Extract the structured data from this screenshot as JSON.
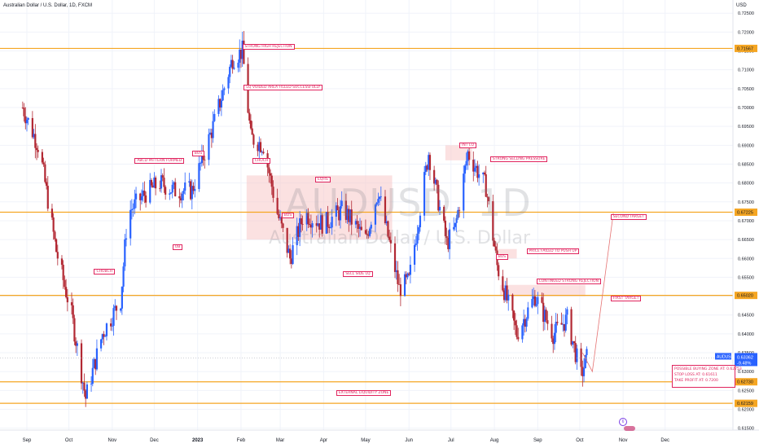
{
  "header": {
    "title": "Australian Dollar / U.S. Dollar, 1D, FXCM",
    "currency": "USD"
  },
  "watermark": {
    "symbol": "AUDUSD, 1D",
    "name": "Australian Dollar / U.S. Dollar"
  },
  "colors": {
    "up": "#2962ff",
    "down": "#b22833",
    "level": "#f5a623",
    "annotation": "#e0245e",
    "zone": "#f8c9c9",
    "price_badge": "#2962ff"
  },
  "chart_data": {
    "type": "candlestick",
    "title": "Australian Dollar / U.S. Dollar, 1D, FXCM",
    "x_tick_labels": [
      "Sep",
      "Oct",
      "Nov",
      "Dec",
      "2023",
      "Feb",
      "Mar",
      "Apr",
      "May",
      "Jun",
      "Jul",
      "Aug",
      "Sep",
      "Oct",
      "Nov",
      "Dec"
    ],
    "y_tick_labels": [
      "0.72500",
      "0.72000",
      "0.71500",
      "0.71000",
      "0.70500",
      "0.70000",
      "0.69500",
      "0.69000",
      "0.68500",
      "0.68000",
      "0.67500",
      "0.67000",
      "0.66500",
      "0.66000",
      "0.65500",
      "0.65000",
      "0.64500",
      "0.64000",
      "0.63500",
      "0.63000",
      "0.62500",
      "0.62000",
      "0.61500"
    ],
    "ylim": [
      0.6145,
      0.7285
    ],
    "grid": true,
    "level_lines": [
      {
        "value": 0.71567,
        "label": "0.71567"
      },
      {
        "value": 0.67225,
        "label": "0.67225"
      },
      {
        "value": 0.6502,
        "label": "0.65020"
      },
      {
        "value": 0.6273,
        "label": "0.62730"
      },
      {
        "value": 0.62159,
        "label": "0.62159"
      }
    ],
    "current_price": {
      "symbol": "AUDUSD",
      "value": "0.63362",
      "change": "-9.48%"
    },
    "path_points": [
      {
        "date": "2022-08-29",
        "price": 0.7
      },
      {
        "date": "2022-09-10",
        "price": 0.689
      },
      {
        "date": "2022-09-22",
        "price": 0.662
      },
      {
        "date": "2022-10-03",
        "price": 0.645
      },
      {
        "date": "2022-10-13",
        "price": 0.623
      },
      {
        "date": "2022-10-25",
        "price": 0.64
      },
      {
        "date": "2022-11-07",
        "price": 0.649
      },
      {
        "date": "2022-11-12",
        "price": 0.672
      },
      {
        "date": "2022-11-24",
        "price": 0.677
      },
      {
        "date": "2022-12-05",
        "price": 0.68
      },
      {
        "date": "2022-12-15",
        "price": 0.678
      },
      {
        "date": "2022-12-28",
        "price": 0.678
      },
      {
        "date": "2023-01-12",
        "price": 0.695
      },
      {
        "date": "2023-01-26",
        "price": 0.713
      },
      {
        "date": "2023-02-02",
        "price": 0.715
      },
      {
        "date": "2023-02-08",
        "price": 0.692
      },
      {
        "date": "2023-02-17",
        "price": 0.69
      },
      {
        "date": "2023-02-27",
        "price": 0.672
      },
      {
        "date": "2023-03-08",
        "price": 0.66
      },
      {
        "date": "2023-03-18",
        "price": 0.672
      },
      {
        "date": "2023-04-01",
        "price": 0.669
      },
      {
        "date": "2023-04-15",
        "price": 0.673
      },
      {
        "date": "2023-05-01",
        "price": 0.665
      },
      {
        "date": "2023-05-10",
        "price": 0.678
      },
      {
        "date": "2023-05-25",
        "price": 0.652
      },
      {
        "date": "2023-06-01",
        "price": 0.654
      },
      {
        "date": "2023-06-15",
        "price": 0.688
      },
      {
        "date": "2023-06-28",
        "price": 0.664
      },
      {
        "date": "2023-07-04",
        "price": 0.668
      },
      {
        "date": "2023-07-13",
        "price": 0.688
      },
      {
        "date": "2023-07-26",
        "price": 0.679
      },
      {
        "date": "2023-08-03",
        "price": 0.658
      },
      {
        "date": "2023-08-17",
        "price": 0.64
      },
      {
        "date": "2023-08-30",
        "price": 0.65
      },
      {
        "date": "2023-09-12",
        "price": 0.64
      },
      {
        "date": "2023-09-22",
        "price": 0.644
      },
      {
        "date": "2023-10-02",
        "price": 0.629
      },
      {
        "date": "2023-10-06",
        "price": 0.6336
      }
    ],
    "annotations": [
      {
        "text": "STRONG HIGH REJECTION",
        "date": "2023-02-02",
        "price": 0.7162
      },
      {
        "text": "LQ VOIDED AREA FILLED SUCCESSFULLY",
        "date": "2023-02-03",
        "price": 0.7055
      },
      {
        "text": "ABCD PATTERN FORMED",
        "date": "2022-11-17",
        "price": 0.686
      },
      {
        "text": "BOS",
        "date": "2022-12-28",
        "price": 0.688
      },
      {
        "text": "CHOCH",
        "date": "2023-02-09",
        "price": 0.686
      },
      {
        "text": "EQHS",
        "date": "2023-03-26",
        "price": 0.681
      },
      {
        "text": "BOS",
        "date": "2023-03-02",
        "price": 0.6715
      },
      {
        "text": "OB",
        "date": "2022-12-14",
        "price": 0.663
      },
      {
        "text": "CHOBCH",
        "date": "2022-10-19",
        "price": 0.6565
      },
      {
        "text": "SELL SIDE LQ",
        "date": "2023-04-15",
        "price": 0.656
      },
      {
        "text": "INT LQ",
        "date": "2023-07-07",
        "price": 0.69
      },
      {
        "text": "STRONG SELLING PRESSURE",
        "date": "2023-07-29",
        "price": 0.6865
      },
      {
        "text": "PRICE FAILED TO PUSH UP",
        "date": "2023-08-24",
        "price": 0.662
      },
      {
        "text": "BOS",
        "date": "2023-08-02",
        "price": 0.6605
      },
      {
        "text": "CONTINUED STRONG REJECTION",
        "date": "2023-08-31",
        "price": 0.654
      },
      {
        "text": "SECOND TARGET",
        "date": "2023-10-23",
        "price": 0.671
      },
      {
        "text": "FIRST TARGET",
        "date": "2023-10-23",
        "price": 0.6495
      },
      {
        "text": "EXTERNAL LIQUIDITY ZONE",
        "date": "2023-04-10",
        "price": 0.6245
      }
    ],
    "trade_box": {
      "entry": "POSSIBLE BUYING ZONE AT: 0.62753",
      "stop": "STOP LOSS AT: 0.61611",
      "target": "TAKE PROFIT AT: 0.7200"
    },
    "zones": [
      {
        "from": "2023-02-05",
        "to": "2023-05-20",
        "price_low": 0.665,
        "price_high": 0.682
      },
      {
        "from": "2023-06-27",
        "to": "2023-07-16",
        "price_low": 0.686,
        "price_high": 0.69
      },
      {
        "from": "2023-08-03",
        "to": "2023-08-17",
        "price_low": 0.66,
        "price_high": 0.6625
      },
      {
        "from": "2023-08-05",
        "to": "2023-10-05",
        "price_low": 0.65,
        "price_high": 0.653
      }
    ],
    "projection": [
      {
        "date": "2023-10-03",
        "price": 0.635
      },
      {
        "date": "2023-10-10",
        "price": 0.63
      },
      {
        "date": "2023-10-25",
        "price": 0.672
      }
    ]
  }
}
